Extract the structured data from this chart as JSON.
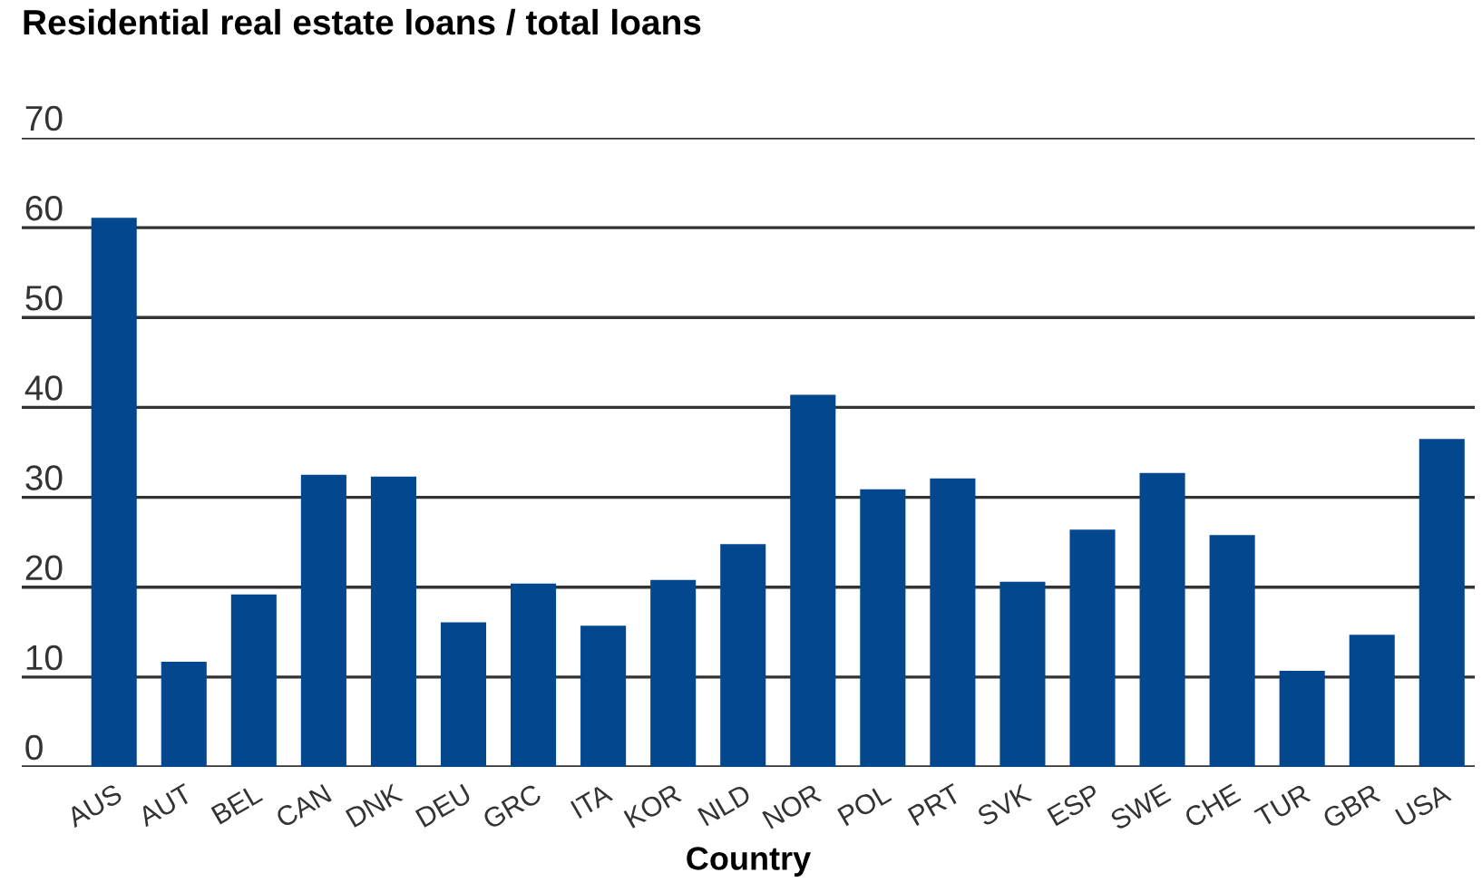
{
  "chart_data": {
    "type": "bar",
    "title": "Residential real estate loans / total loans",
    "xlabel": "Country",
    "categories": [
      "AUS",
      "AUT",
      "BEL",
      "CAN",
      "DNK",
      "DEU",
      "GRC",
      "ITA",
      "KOR",
      "NLD",
      "NOR",
      "POL",
      "PRT",
      "SVK",
      "ESP",
      "SWE",
      "CHE",
      "TUR",
      "GBR",
      "USA"
    ],
    "values": [
      61.1,
      11.7,
      19.2,
      32.5,
      32.3,
      16.1,
      20.4,
      15.7,
      20.8,
      24.8,
      41.4,
      30.9,
      32.1,
      20.6,
      26.4,
      32.7,
      25.8,
      10.7,
      14.7,
      36.5
    ],
    "color": "#03488f",
    "ylim": [
      0,
      70
    ],
    "yticks": [
      0,
      10,
      20,
      30,
      40,
      50,
      60,
      70
    ],
    "grid": "y"
  }
}
